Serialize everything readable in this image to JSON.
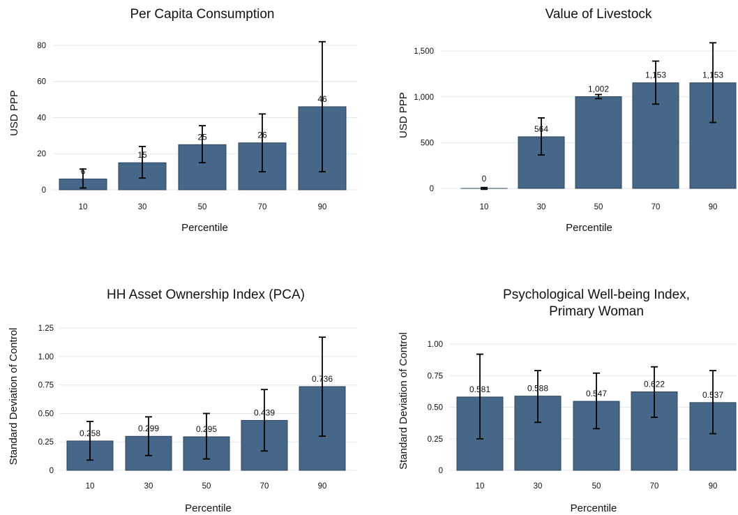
{
  "chart_data": [
    {
      "type": "bar",
      "title": [
        "Per Capita Consumption"
      ],
      "xlabel": "Percentile",
      "ylabel": "USD PPP",
      "categories": [
        "10",
        "30",
        "50",
        "70",
        "90"
      ],
      "values": [
        6,
        15,
        25,
        26,
        46
      ],
      "value_labels": [
        "6",
        "15",
        "25",
        "26",
        "46"
      ],
      "ci_low": [
        1,
        6.5,
        15,
        10,
        10
      ],
      "ci_high": [
        11.5,
        24,
        35.5,
        42,
        82
      ],
      "ylim": [
        0,
        85
      ],
      "yticks": [
        0,
        20,
        40,
        60,
        80
      ],
      "ytick_labels": [
        "0",
        "20",
        "40",
        "60",
        "80"
      ],
      "grid": true,
      "bar_color": "#476788"
    },
    {
      "type": "bar",
      "title": [
        "Value of Livestock"
      ],
      "xlabel": "Percentile",
      "ylabel": "USD PPP",
      "categories": [
        "10",
        "30",
        "50",
        "70",
        "90"
      ],
      "values": [
        0,
        564,
        1002,
        1153,
        1153
      ],
      "value_labels": [
        "0",
        "564",
        "1,002",
        "1,153",
        "1,153"
      ],
      "ci_low": [
        -10,
        365,
        980,
        920,
        720
      ],
      "ci_high": [
        10,
        770,
        1025,
        1390,
        1590
      ],
      "ylim": [
        0,
        1600
      ],
      "yticks": [
        0,
        500,
        1000,
        1500
      ],
      "ytick_labels": [
        "0",
        "500",
        "1,000",
        "1,500"
      ],
      "grid": true,
      "bar_color": "#476788"
    },
    {
      "type": "bar",
      "title": [
        "HH Asset Ownership Index (PCA)"
      ],
      "xlabel": "Percentile",
      "ylabel": "Standard Deviation of Control",
      "categories": [
        "10",
        "30",
        "50",
        "70",
        "90"
      ],
      "values": [
        0.258,
        0.299,
        0.295,
        0.439,
        0.736
      ],
      "value_labels": [
        "0.258",
        "0.299",
        "0.295",
        "0.439",
        "0.736"
      ],
      "ci_low": [
        0.09,
        0.13,
        0.1,
        0.17,
        0.3
      ],
      "ci_high": [
        0.43,
        0.47,
        0.5,
        0.71,
        1.17
      ],
      "ylim": [
        0,
        1.3
      ],
      "yticks": [
        0,
        0.25,
        0.5,
        0.75,
        1.0,
        1.25
      ],
      "ytick_labels": [
        "0",
        "0.25",
        "0.50",
        "0.75",
        "1.00",
        "1.25"
      ],
      "grid": true,
      "bar_color": "#476788"
    },
    {
      "type": "bar",
      "title": [
        "Psychological Well-being Index,",
        "Primary Woman"
      ],
      "xlabel": "Percentile",
      "ylabel": "Standard Deviation of Control",
      "categories": [
        "10",
        "30",
        "50",
        "70",
        "90"
      ],
      "values": [
        0.581,
        0.588,
        0.547,
        0.622,
        0.537
      ],
      "value_labels": [
        "0.581",
        "0.588",
        "0.547",
        "0.622",
        "0.537"
      ],
      "ci_low": [
        0.25,
        0.38,
        0.33,
        0.42,
        0.29
      ],
      "ci_high": [
        0.92,
        0.79,
        0.77,
        0.82,
        0.79
      ],
      "ylim": [
        0,
        1.1
      ],
      "yticks": [
        0,
        0.25,
        0.5,
        0.75,
        1.0
      ],
      "ytick_labels": [
        "0",
        "0.25",
        "0.50",
        "0.75",
        "1.00"
      ],
      "grid": true,
      "bar_color": "#476788"
    }
  ]
}
